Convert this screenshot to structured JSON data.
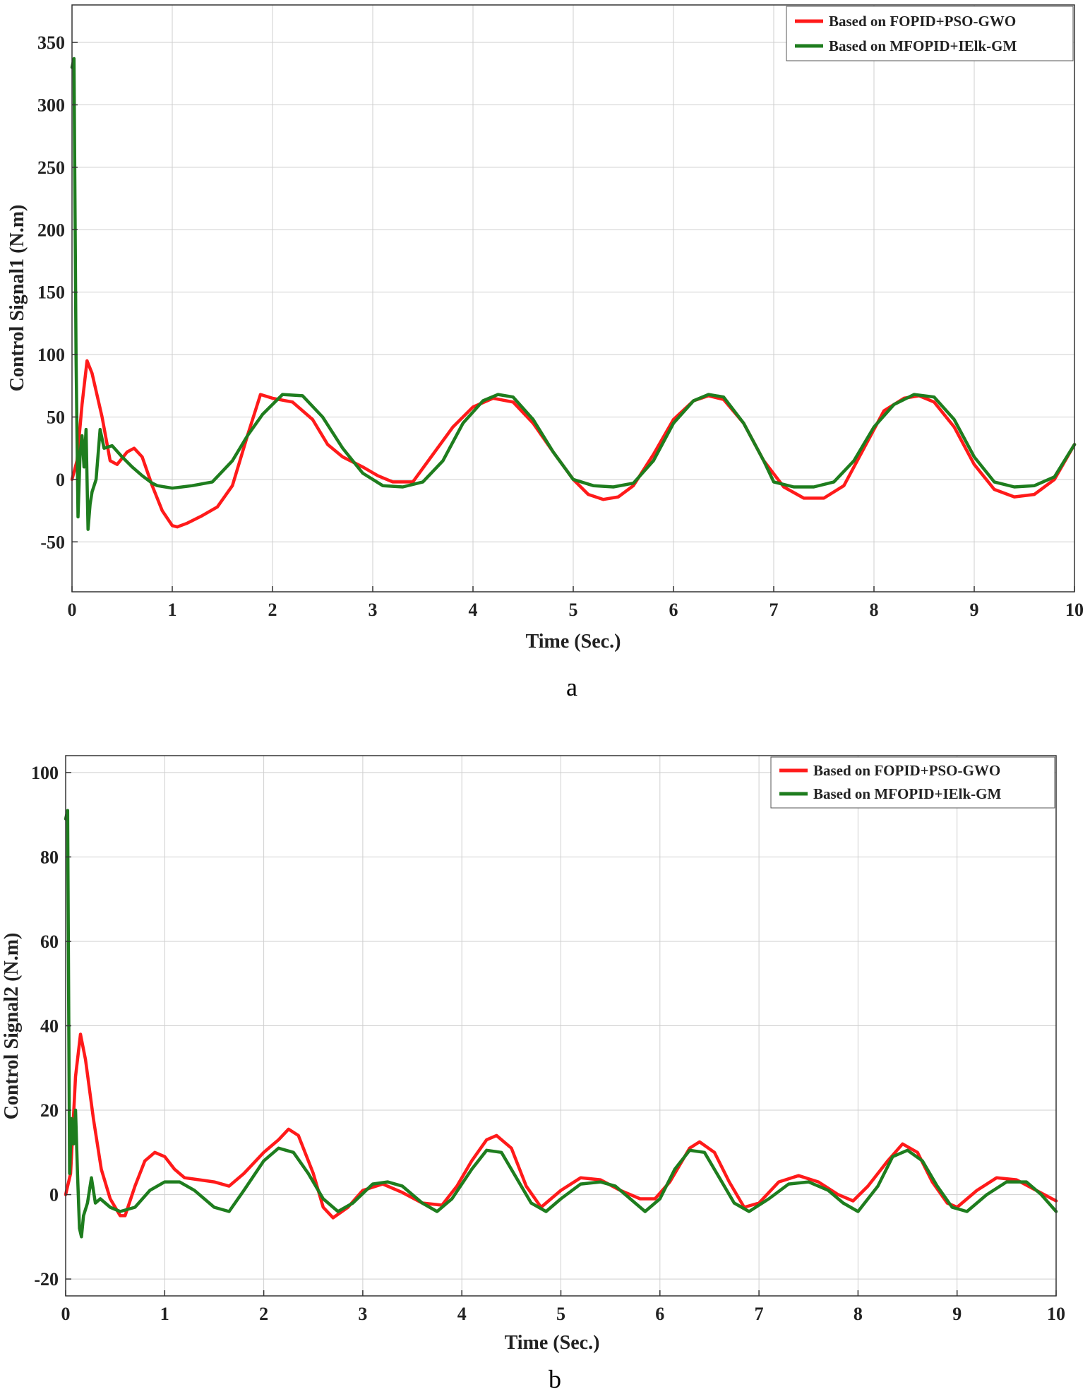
{
  "chart_data": [
    {
      "type": "line",
      "panel_label": "a",
      "title": "",
      "xlabel": "Time (Sec.)",
      "ylabel": "Control Signal1 (N.m)",
      "xlim": [
        0,
        10
      ],
      "ylim": [
        -90,
        380
      ],
      "xticks": [
        0,
        1,
        2,
        3,
        4,
        5,
        6,
        7,
        8,
        9,
        10
      ],
      "yticks": [
        -50,
        0,
        50,
        100,
        150,
        200,
        250,
        300,
        350
      ],
      "grid": true,
      "legend_position": "top-right",
      "series": [
        {
          "name": "Based on FOPID+PSO-GWO",
          "color": "#ff1a1a",
          "x": [
            0,
            0.05,
            0.1,
            0.15,
            0.2,
            0.3,
            0.38,
            0.45,
            0.55,
            0.62,
            0.7,
            0.8,
            0.9,
            1.0,
            1.05,
            1.15,
            1.3,
            1.45,
            1.6,
            1.75,
            1.88,
            2.0,
            2.2,
            2.4,
            2.55,
            2.7,
            2.9,
            3.05,
            3.2,
            3.4,
            3.6,
            3.8,
            4.0,
            4.2,
            4.4,
            4.6,
            4.8,
            5.0,
            5.15,
            5.3,
            5.45,
            5.6,
            5.8,
            6.0,
            6.2,
            6.35,
            6.5,
            6.7,
            6.9,
            7.1,
            7.3,
            7.5,
            7.7,
            7.9,
            8.1,
            8.3,
            8.45,
            8.6,
            8.8,
            9.0,
            9.2,
            9.4,
            9.6,
            9.8,
            10.0
          ],
          "y": [
            0,
            15,
            60,
            95,
            85,
            50,
            15,
            12,
            22,
            25,
            18,
            -5,
            -25,
            -37,
            -38,
            -35,
            -29,
            -22,
            -5,
            35,
            68,
            65,
            62,
            48,
            28,
            18,
            10,
            3,
            -2,
            -2,
            20,
            42,
            58,
            65,
            62,
            45,
            22,
            0,
            -12,
            -16,
            -14,
            -5,
            20,
            48,
            63,
            67,
            64,
            45,
            15,
            -6,
            -15,
            -15,
            -5,
            25,
            55,
            65,
            67,
            62,
            42,
            12,
            -8,
            -14,
            -12,
            0,
            28
          ]
        },
        {
          "name": "Based on MFOPID+IElk-GM",
          "color": "#1e7d1e",
          "x": [
            0,
            0.02,
            0.04,
            0.06,
            0.08,
            0.1,
            0.12,
            0.14,
            0.16,
            0.18,
            0.2,
            0.24,
            0.28,
            0.32,
            0.4,
            0.5,
            0.6,
            0.7,
            0.8,
            0.85,
            1.0,
            1.2,
            1.4,
            1.6,
            1.75,
            1.9,
            2.1,
            2.3,
            2.5,
            2.7,
            2.9,
            3.1,
            3.3,
            3.5,
            3.7,
            3.9,
            4.1,
            4.25,
            4.4,
            4.6,
            4.8,
            5.0,
            5.2,
            5.4,
            5.6,
            5.8,
            6.0,
            6.2,
            6.35,
            6.5,
            6.7,
            6.9,
            7.0,
            7.2,
            7.4,
            7.6,
            7.8,
            8.0,
            8.2,
            8.4,
            8.6,
            8.8,
            9.0,
            9.2,
            9.4,
            9.6,
            9.8,
            10.0
          ],
          "y": [
            330,
            337,
            100,
            -30,
            20,
            35,
            10,
            40,
            -40,
            -20,
            -10,
            0,
            40,
            25,
            27,
            18,
            10,
            3,
            -3,
            -5,
            -7,
            -5,
            -2,
            15,
            35,
            52,
            68,
            67,
            50,
            25,
            5,
            -5,
            -6,
            -2,
            15,
            45,
            63,
            68,
            66,
            48,
            22,
            0,
            -5,
            -6,
            -3,
            15,
            45,
            63,
            68,
            66,
            45,
            15,
            -2,
            -6,
            -6,
            -2,
            15,
            42,
            60,
            68,
            66,
            48,
            18,
            -2,
            -6,
            -5,
            2,
            28
          ]
        }
      ]
    },
    {
      "type": "line",
      "panel_label": "b",
      "title": "",
      "xlabel": "Time (Sec.)",
      "ylabel": "Control Signal2 (N.m)",
      "xlim": [
        0,
        10
      ],
      "ylim": [
        -24,
        104
      ],
      "xticks": [
        0,
        1,
        2,
        3,
        4,
        5,
        6,
        7,
        8,
        9,
        10
      ],
      "yticks": [
        -20,
        0,
        20,
        40,
        60,
        80,
        100
      ],
      "grid": true,
      "legend_position": "top-right",
      "series": [
        {
          "name": "Based on FOPID+PSO-GWO",
          "color": "#ff1a1a",
          "x": [
            0,
            0.05,
            0.1,
            0.15,
            0.2,
            0.28,
            0.36,
            0.45,
            0.55,
            0.6,
            0.7,
            0.8,
            0.9,
            1.0,
            1.1,
            1.2,
            1.35,
            1.5,
            1.65,
            1.8,
            2.0,
            2.15,
            2.25,
            2.35,
            2.5,
            2.6,
            2.7,
            2.85,
            3.0,
            3.2,
            3.4,
            3.6,
            3.8,
            3.95,
            4.1,
            4.25,
            4.35,
            4.5,
            4.65,
            4.8,
            5.0,
            5.2,
            5.4,
            5.6,
            5.8,
            5.95,
            6.1,
            6.3,
            6.4,
            6.55,
            6.7,
            6.85,
            7.0,
            7.2,
            7.4,
            7.6,
            7.8,
            7.95,
            8.1,
            8.3,
            8.45,
            8.6,
            8.75,
            8.9,
            9.0,
            9.2,
            9.4,
            9.6,
            9.8,
            10.0
          ],
          "y": [
            0,
            5,
            28,
            38,
            32,
            18,
            6,
            -1,
            -5,
            -5,
            2,
            8,
            10,
            9,
            6,
            4,
            3.5,
            3,
            2,
            5,
            10,
            13,
            15.5,
            14,
            5,
            -3,
            -5.5,
            -3,
            1,
            2.5,
            0.5,
            -2,
            -2.5,
            2,
            8,
            13,
            14,
            11,
            2,
            -3,
            1,
            4,
            3.5,
            1,
            -1,
            -1,
            3,
            11,
            12.5,
            10,
            3,
            -3,
            -2,
            3,
            4.5,
            3,
            0,
            -1.5,
            2,
            8,
            12,
            10,
            3,
            -2,
            -3,
            1,
            4,
            3.5,
            1,
            -1.5
          ]
        },
        {
          "name": "Based on MFOPID+IElk-GM",
          "color": "#1e7d1e",
          "x": [
            0,
            0.02,
            0.04,
            0.06,
            0.08,
            0.1,
            0.12,
            0.14,
            0.16,
            0.18,
            0.22,
            0.26,
            0.3,
            0.35,
            0.45,
            0.55,
            0.7,
            0.85,
            1.0,
            1.15,
            1.3,
            1.5,
            1.65,
            1.8,
            2.0,
            2.15,
            2.3,
            2.45,
            2.6,
            2.75,
            2.9,
            3.1,
            3.25,
            3.4,
            3.6,
            3.75,
            3.9,
            4.1,
            4.25,
            4.4,
            4.55,
            4.7,
            4.85,
            5.0,
            5.2,
            5.4,
            5.55,
            5.7,
            5.85,
            6.0,
            6.15,
            6.3,
            6.45,
            6.6,
            6.75,
            6.9,
            7.1,
            7.3,
            7.5,
            7.7,
            7.85,
            8.0,
            8.2,
            8.35,
            8.5,
            8.65,
            8.8,
            8.95,
            9.1,
            9.3,
            9.5,
            9.7,
            9.85,
            10.0
          ],
          "y": [
            89,
            91,
            5,
            18,
            12,
            20,
            5,
            -8,
            -10,
            -5,
            -2,
            4,
            -2,
            -1,
            -3,
            -4,
            -3,
            1,
            3,
            3,
            1,
            -3,
            -4,
            1,
            8,
            11,
            10,
            5,
            -1,
            -4,
            -2,
            2.5,
            3,
            2,
            -2,
            -4,
            -1,
            6,
            10.5,
            10,
            4,
            -2,
            -4,
            -1,
            2.5,
            3,
            2,
            -1,
            -4,
            -1,
            6,
            10.5,
            10,
            4,
            -2,
            -4,
            -1,
            2.5,
            3,
            1,
            -2,
            -4,
            2,
            9,
            10.5,
            8,
            2,
            -3,
            -4,
            0,
            3,
            3,
            0,
            -4
          ]
        }
      ]
    }
  ]
}
